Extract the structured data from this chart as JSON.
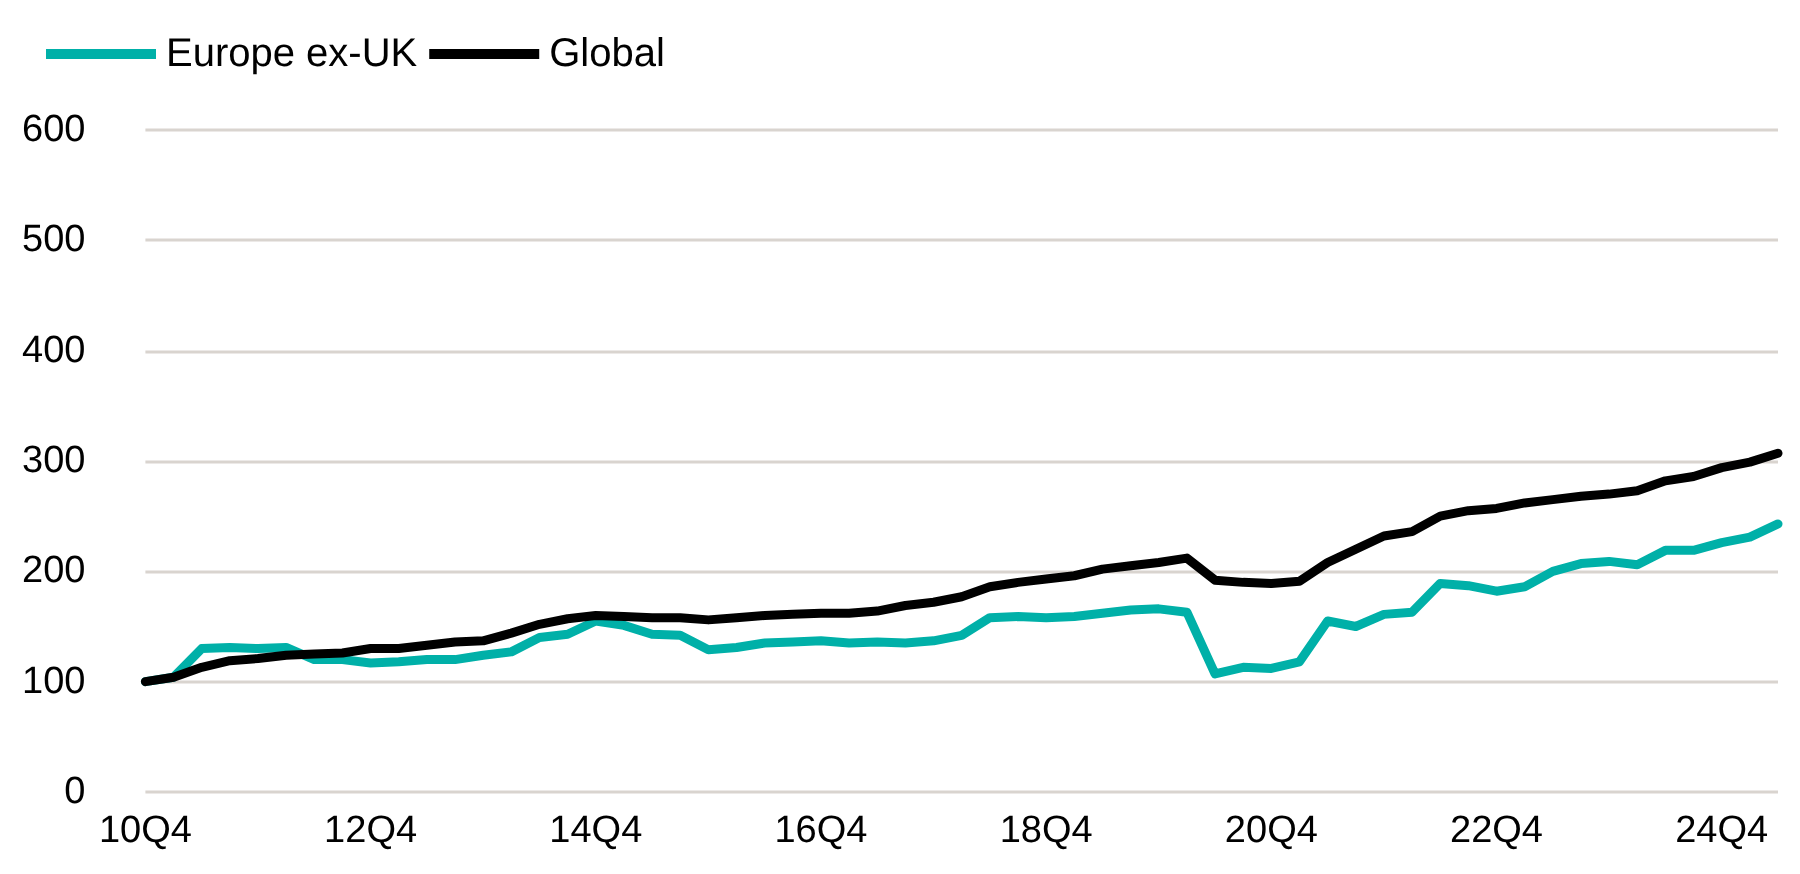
{
  "chart_data": {
    "type": "line",
    "categories": [
      "10Q4",
      null,
      null,
      null,
      null,
      null,
      null,
      null,
      "12Q4",
      null,
      null,
      null,
      null,
      null,
      null,
      null,
      "14Q4",
      null,
      null,
      null,
      null,
      null,
      null,
      null,
      "16Q4",
      null,
      null,
      null,
      null,
      null,
      null,
      null,
      "18Q4",
      null,
      null,
      null,
      null,
      null,
      null,
      null,
      "20Q4",
      null,
      null,
      null,
      null,
      null,
      null,
      null,
      "22Q4",
      null,
      null,
      null,
      null,
      null,
      null,
      null,
      "24Q4",
      null,
      null
    ],
    "series": [
      {
        "name": "Europe ex-UK",
        "color": "#00b0a8",
        "values": [
          100,
          104,
          130,
          131,
          130,
          131,
          120,
          120,
          117,
          118,
          120,
          120,
          124,
          127,
          140,
          143,
          155,
          151,
          143,
          142,
          129,
          131,
          135,
          136,
          137,
          135,
          136,
          135,
          137,
          142,
          158,
          159,
          158,
          159,
          162,
          165,
          166,
          163,
          107,
          113,
          112,
          118,
          155,
          150,
          161,
          163,
          189,
          187,
          182,
          186,
          200,
          207,
          209,
          206,
          219,
          219,
          226,
          231,
          243
        ]
      },
      {
        "name": "Global",
        "color": "#000000",
        "values": [
          100,
          104,
          113,
          119,
          121,
          124,
          125,
          126,
          130,
          130,
          133,
          136,
          137,
          144,
          152,
          157,
          160,
          159,
          158,
          158,
          156,
          158,
          160,
          161,
          162,
          162,
          164,
          169,
          172,
          177,
          186,
          190,
          193,
          196,
          202,
          205,
          208,
          212,
          192,
          190,
          189,
          191,
          208,
          220,
          232,
          236,
          250,
          255,
          257,
          262,
          265,
          268,
          270,
          273,
          282,
          286,
          294,
          299,
          307
        ]
      }
    ],
    "ylim": [
      0,
      600
    ],
    "yticks": [
      0,
      100,
      200,
      300,
      400,
      500,
      600
    ],
    "grid": "y",
    "legend": "top left",
    "line_style": "solid",
    "marker": "none"
  }
}
